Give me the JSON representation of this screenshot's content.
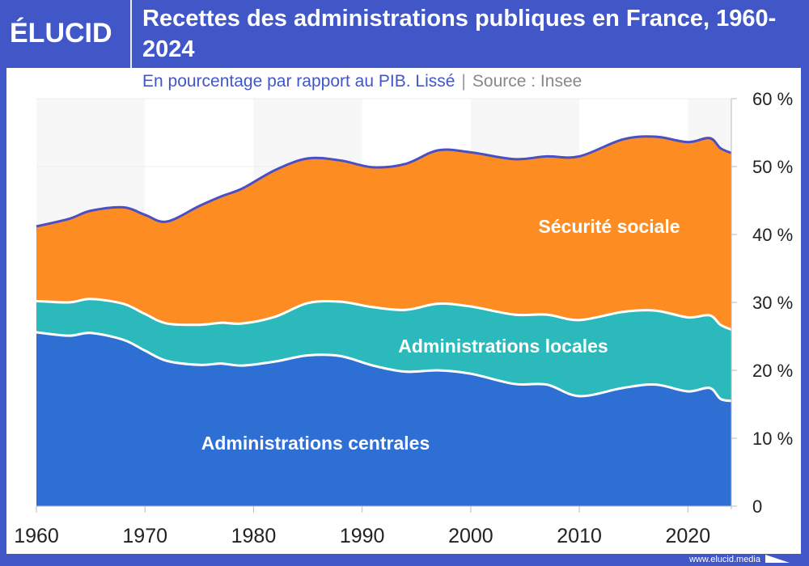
{
  "brand": {
    "logo": "ÉLUCID",
    "footer_url": "www.elucid.media"
  },
  "header": {
    "title": "Recettes des administrations publiques en France, 1960-2024",
    "subtitle": "En pourcentage par rapport au PIB. Lissé",
    "separator": "|",
    "source": "Source : Insee"
  },
  "chart_data": {
    "type": "area",
    "stacked": true,
    "smoothed": true,
    "title": "Recettes des administrations publiques en France, 1960-2024",
    "xlim": [
      1960,
      2024
    ],
    "ylim": [
      0,
      60
    ],
    "x_ticks": [
      1960,
      1970,
      1980,
      1990,
      2000,
      2010,
      2020
    ],
    "x_tick_labels": [
      "1960",
      "1970",
      "1980",
      "1990",
      "2000",
      "2010",
      "2020"
    ],
    "y_ticks": [
      0,
      10,
      20,
      30,
      40,
      50,
      60
    ],
    "y_tick_labels": [
      "0",
      "10 %",
      "20 %",
      "30 %",
      "40 %",
      "50 %",
      "60 %"
    ],
    "y_axis_side": "right",
    "alternating_decade_bands": true,
    "x": [
      1960,
      1963,
      1965,
      1968,
      1970,
      1972,
      1975,
      1977,
      1979,
      1982,
      1985,
      1988,
      1991,
      1994,
      1997,
      2000,
      2004,
      2007,
      2010,
      2014,
      2017,
      2020,
      2022,
      2023,
      2024
    ],
    "series": [
      {
        "name": "Administrations centrales",
        "color": "#2e6fd4",
        "values": [
          25.6,
          25.1,
          25.5,
          24.5,
          22.9,
          21.4,
          20.8,
          21.0,
          20.7,
          21.3,
          22.2,
          22.1,
          20.7,
          19.8,
          20.0,
          19.5,
          18.0,
          17.9,
          16.2,
          17.4,
          17.9,
          16.9,
          17.4,
          15.8,
          15.5
        ]
      },
      {
        "name": "Administrations locales",
        "color": "#2bb9bb",
        "values": [
          4.6,
          4.9,
          5.0,
          5.3,
          5.4,
          5.5,
          5.9,
          6.0,
          6.2,
          6.6,
          7.7,
          8.0,
          8.6,
          9.1,
          9.8,
          9.9,
          10.2,
          10.3,
          11.2,
          11.2,
          10.9,
          10.9,
          10.7,
          10.9,
          10.5
        ]
      },
      {
        "name": "Sécurité sociale",
        "color": "#fd8c22",
        "values": [
          11.0,
          12.3,
          13.0,
          14.2,
          14.6,
          15.0,
          17.5,
          18.6,
          19.9,
          21.6,
          21.3,
          20.8,
          20.6,
          21.5,
          22.6,
          22.7,
          22.9,
          23.3,
          24.1,
          25.4,
          25.6,
          25.8,
          26.1,
          26.0,
          26.0
        ]
      }
    ],
    "total_line_color": "#4a4fc4",
    "band_color": "#f7f7f8"
  }
}
